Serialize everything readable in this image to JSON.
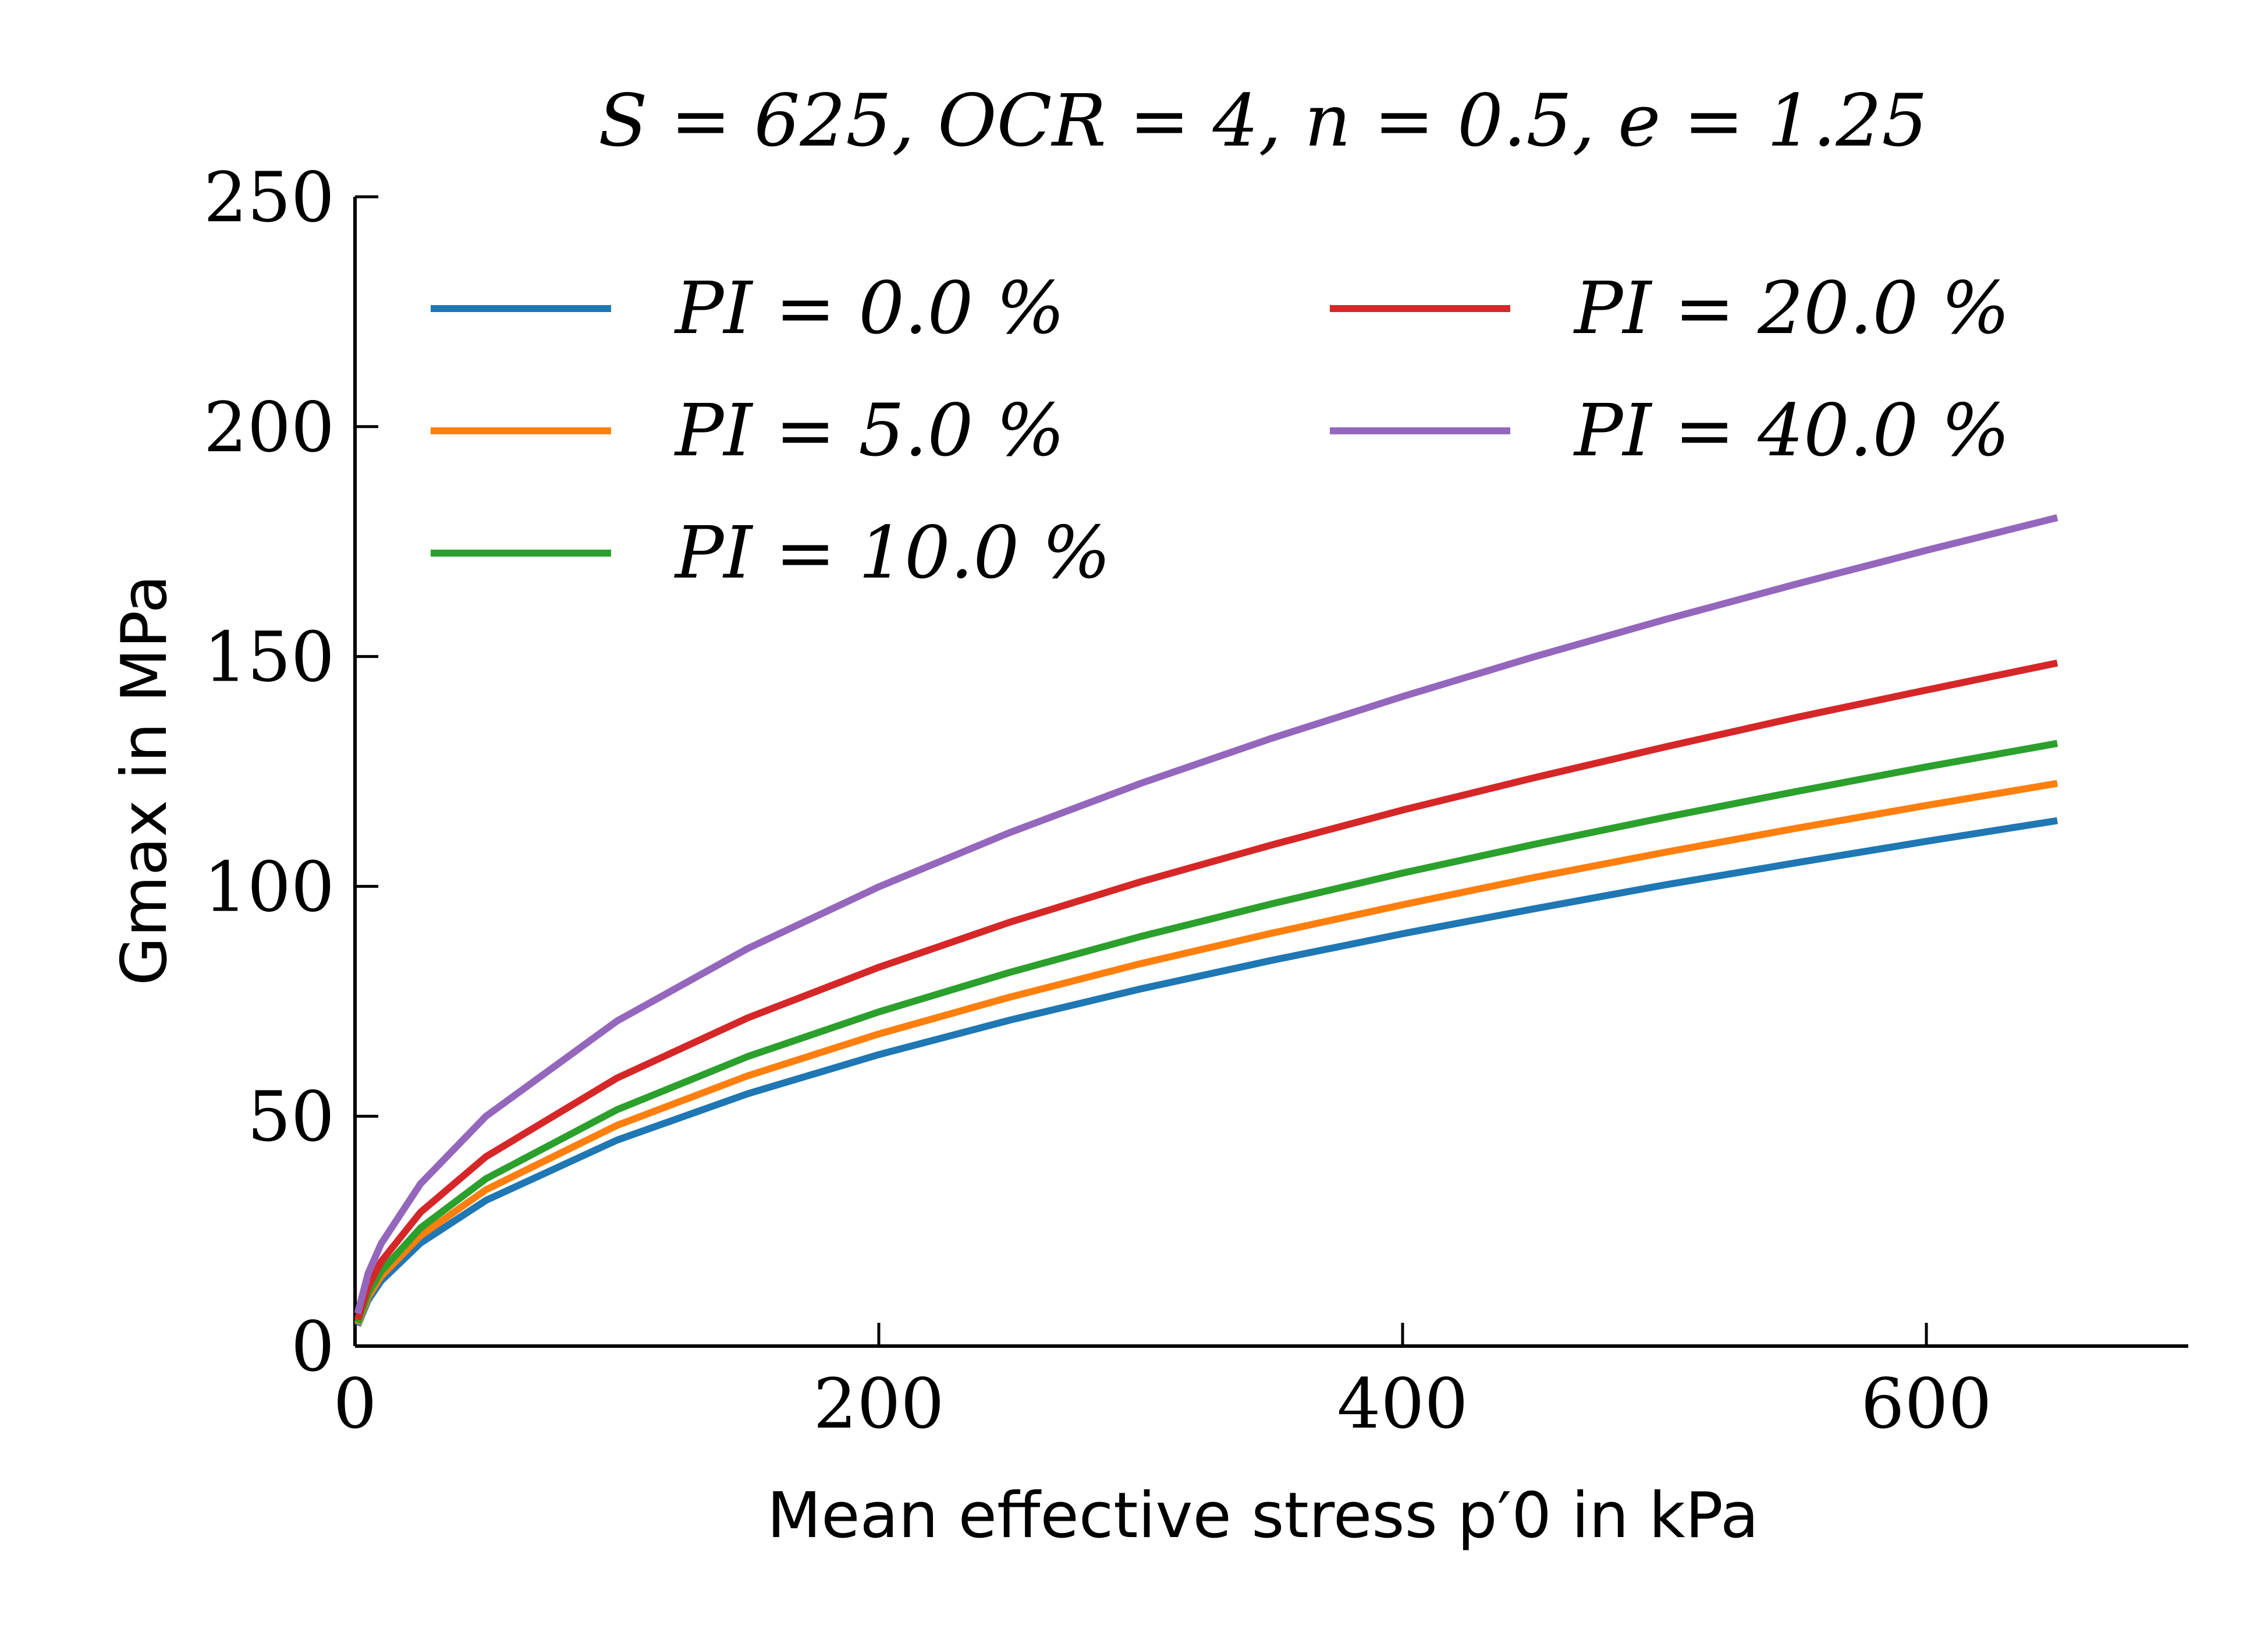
{
  "chart_data": {
    "type": "line",
    "title": "S = 625, OCR = 4, n = 0.5, e = 1.25",
    "xlabel": "Mean effective stress p′0 in kPa",
    "ylabel": "Gmax in MPa",
    "xlim": [
      0,
      700
    ],
    "ylim": [
      0,
      250
    ],
    "xticks": [
      0,
      200,
      400,
      600
    ],
    "yticks": [
      0,
      50,
      100,
      150,
      200,
      250
    ],
    "grid": false,
    "legend_position": "top-left",
    "x": [
      1,
      5,
      10,
      25,
      50,
      100,
      150,
      200,
      250,
      300,
      350,
      400,
      450,
      500,
      550,
      600,
      650
    ],
    "series": [
      {
        "name": "PI = 0.0 %",
        "color": "#1f77b4",
        "values": [
          4.5,
          10.0,
          14.2,
          22.4,
          31.7,
          44.8,
          54.9,
          63.4,
          70.9,
          77.7,
          83.9,
          89.7,
          95.1,
          100.3,
          105.1,
          109.8,
          114.3
        ]
      },
      {
        "name": "PI = 5.0 %",
        "color": "#ff7f0e",
        "values": [
          4.8,
          10.7,
          15.2,
          24.0,
          34.0,
          48.0,
          58.8,
          67.9,
          75.9,
          83.2,
          89.8,
          96.0,
          101.9,
          107.4,
          112.6,
          117.6,
          122.4
        ]
      },
      {
        "name": "PI = 10.0 %",
        "color": "#2ca02c",
        "values": [
          5.1,
          11.5,
          16.3,
          25.7,
          36.4,
          51.4,
          63.0,
          72.7,
          81.3,
          89.1,
          96.2,
          102.9,
          109.1,
          115.0,
          120.6,
          126.0,
          131.1
        ]
      },
      {
        "name": "PI = 20.0 %",
        "color": "#d62728",
        "values": [
          5.8,
          13.0,
          18.4,
          29.1,
          41.2,
          58.3,
          71.4,
          82.4,
          92.2,
          101.0,
          109.0,
          116.6,
          123.6,
          130.3,
          136.7,
          142.7,
          148.6
        ]
      },
      {
        "name": "PI = 40.0 %",
        "color": "#9467bd",
        "values": [
          7.1,
          15.8,
          22.3,
          35.3,
          50.0,
          70.7,
          86.5,
          99.9,
          111.7,
          122.4,
          132.2,
          141.3,
          149.9,
          158.0,
          165.7,
          173.1,
          180.2
        ]
      }
    ]
  }
}
